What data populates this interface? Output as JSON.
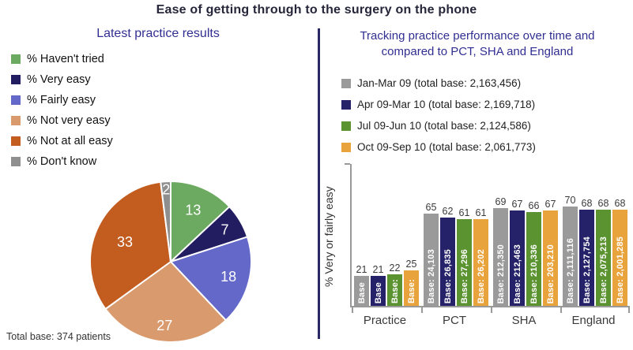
{
  "page": {
    "title": "Ease of getting through to the surgery on the phone"
  },
  "colors": {
    "divider": "#2b2866",
    "panel_title": "#312e91",
    "axis": "#999999"
  },
  "chart_data": [
    {
      "type": "pie",
      "title": "Latest practice results",
      "footnote": "Total base: 374 patients",
      "legend_position": "top-left",
      "slices": [
        {
          "label": "% Haven't tried",
          "value": 13,
          "color": "#6caa61"
        },
        {
          "label": "% Very easy",
          "value": 7,
          "color": "#221d61"
        },
        {
          "label": "% Fairly easy",
          "value": 18,
          "color": "#6468c9"
        },
        {
          "label": "% Not very easy",
          "value": 27,
          "color": "#d99a6e"
        },
        {
          "label": "% Not at all easy",
          "value": 33,
          "color": "#c25c1f"
        },
        {
          "label": "% Don't know",
          "value": 2,
          "color": "#8f8f8f"
        }
      ]
    },
    {
      "type": "bar",
      "title": "Tracking practice performance over time and compared to PCT, SHA and England",
      "title_lines": [
        "Tracking practice performance over time and",
        "compared to PCT, SHA and England"
      ],
      "ylabel": "% Very or fairly easy",
      "ylim": [
        0,
        100
      ],
      "grid": false,
      "legend_position": "top-left",
      "categories": [
        "Practice",
        "PCT",
        "SHA",
        "England"
      ],
      "series": [
        {
          "name": "Jan-Mar 09 (total base: 2,163,456)",
          "color": "#9a9a9a",
          "values": [
            21,
            65,
            69,
            70
          ],
          "bar_labels": [
            "Base",
            "Base: 24,103",
            "Base: 212,350",
            "Base: 2,111,116"
          ]
        },
        {
          "name": "Apr 09-Mar 10 (total base: 2,169,718)",
          "color": "#262269",
          "values": [
            21,
            62,
            67,
            68
          ],
          "bar_labels": [
            "Base",
            "Base: 26,835",
            "Base: 212,463",
            "Base: 2,127,754"
          ]
        },
        {
          "name": "Jul 09-Jun 10 (total base: 2,124,586)",
          "color": "#5b9331",
          "values": [
            22,
            61,
            66,
            68
          ],
          "bar_labels": [
            "Base:",
            "Base: 27,296",
            "Base: 210,336",
            "Base: 2,075,213"
          ]
        },
        {
          "name": "Oct 09-Sep 10 (total base: 2,061,773)",
          "color": "#e8a33c",
          "values": [
            25,
            61,
            67,
            68
          ],
          "bar_labels": [
            "Base:",
            "Base: 26,202",
            "Base: 203,210",
            "Base: 2,001,285"
          ]
        }
      ]
    }
  ]
}
